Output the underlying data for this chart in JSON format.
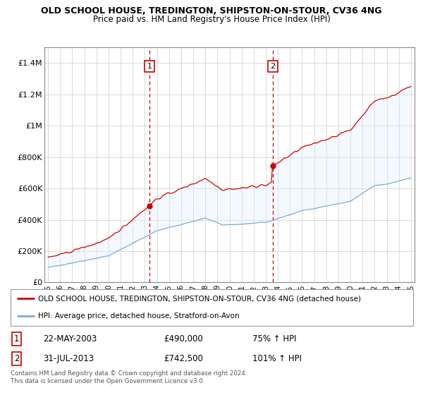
{
  "title": "OLD SCHOOL HOUSE, TREDINGTON, SHIPSTON-ON-STOUR, CV36 4NG",
  "subtitle": "Price paid vs. HM Land Registry's House Price Index (HPI)",
  "legend_line1": "OLD SCHOOL HOUSE, TREDINGTON, SHIPSTON-ON-STOUR, CV36 4NG (detached house)",
  "legend_line2": "HPI: Average price, detached house, Stratford-on-Avon",
  "footer": "Contains HM Land Registry data © Crown copyright and database right 2024.\nThis data is licensed under the Open Government Licence v3.0.",
  "purchase1_date": "22-MAY-2003",
  "purchase1_price": 490000,
  "purchase1_label": "75% ↑ HPI",
  "purchase2_date": "31-JUL-2013",
  "purchase2_price": 742500,
  "purchase2_label": "101% ↑ HPI",
  "purchase1_x": 2003.38,
  "purchase2_x": 2013.58,
  "ylim": [
    0,
    1500000
  ],
  "xlim": [
    1994.7,
    2025.3
  ],
  "red_color": "#cc0000",
  "blue_color": "#7aaadd",
  "shade_color": "#ddeeff",
  "yticks": [
    0,
    200000,
    400000,
    600000,
    800000,
    1000000,
    1200000,
    1400000
  ],
  "ytick_labels": [
    "£0",
    "£200K",
    "£400K",
    "£600K",
    "£800K",
    "£1M",
    "£1.2M",
    "£1.4M"
  ]
}
